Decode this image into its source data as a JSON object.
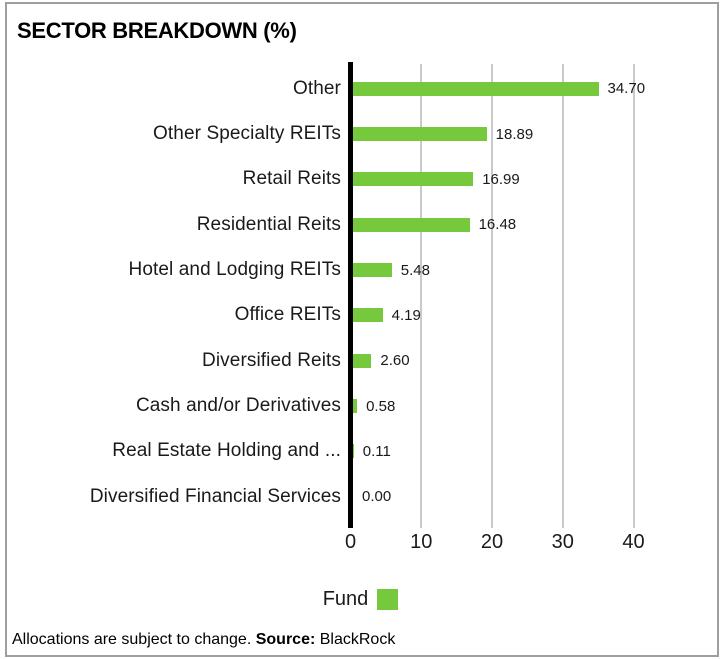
{
  "header": {
    "title": "SECTOR BREAKDOWN (%)"
  },
  "chart_data": {
    "type": "bar",
    "orientation": "horizontal",
    "title": "SECTOR BREAKDOWN (%)",
    "categories": [
      "Other",
      "Other Specialty REITs",
      "Retail Reits",
      "Residential Reits",
      "Hotel and Lodging REITs",
      "Office REITs",
      "Diversified Reits",
      "Cash and/or Derivatives",
      "Real Estate Holding and ...",
      "Diversified Financial Services"
    ],
    "values": [
      34.7,
      18.89,
      16.99,
      16.48,
      5.48,
      4.19,
      2.6,
      0.58,
      0.11,
      0.0
    ],
    "value_labels": [
      "34.70",
      "18.89",
      "16.99",
      "16.48",
      "5.48",
      "4.19",
      "2.60",
      "0.58",
      "0.11",
      "0.00"
    ],
    "x_ticks": [
      "0",
      "10",
      "20",
      "30",
      "40"
    ],
    "xlim": [
      0,
      51
    ],
    "grid": "vertical-gridlines-at-ticks",
    "series": [
      {
        "name": "Fund",
        "color": "#76C83C"
      }
    ],
    "legend_position": "bottom",
    "axis_color": "#000000",
    "gridline_color": "#c9c9c9"
  },
  "legend": {
    "label": "Fund",
    "swatch_color": "#76C83C"
  },
  "footer": {
    "note": "Allocations are subject to change.",
    "source_label": "Source:",
    "source_value": "BlackRock"
  }
}
